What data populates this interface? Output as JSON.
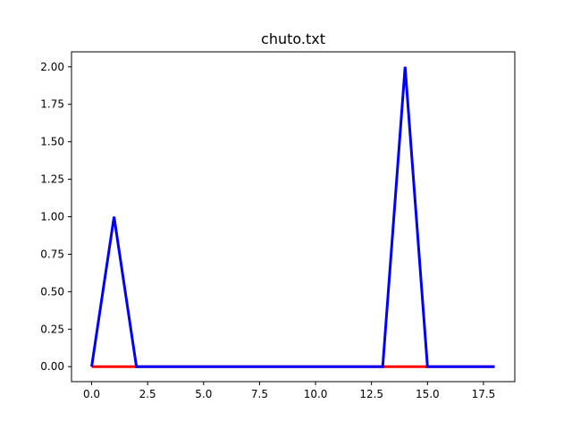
{
  "chart_data": {
    "type": "line",
    "title": "chuto.txt",
    "xlabel": "",
    "ylabel": "",
    "xlim": [
      -0.9,
      18.9
    ],
    "ylim": [
      -0.1,
      2.1
    ],
    "xticks": [
      0,
      2.5,
      5,
      7.5,
      10,
      12.5,
      15,
      17.5
    ],
    "xtick_labels": [
      "0.0",
      "2.5",
      "5.0",
      "7.5",
      "10.0",
      "12.5",
      "15.0",
      "17.5"
    ],
    "yticks": [
      0,
      0.25,
      0.5,
      0.75,
      1,
      1.25,
      1.5,
      1.75,
      2
    ],
    "ytick_labels": [
      "0.00",
      "0.25",
      "0.50",
      "0.75",
      "1.00",
      "1.25",
      "1.50",
      "1.75",
      "2.00"
    ],
    "grid": false,
    "x": [
      0,
      1,
      2,
      3,
      4,
      5,
      6,
      7,
      8,
      9,
      10,
      11,
      12,
      13,
      14,
      15,
      16,
      17,
      18
    ],
    "series": [
      {
        "color": "#ff0000",
        "values": [
          0,
          0,
          0,
          0,
          0,
          0,
          0,
          0,
          0,
          0,
          0,
          0,
          0,
          0,
          0,
          0,
          0,
          0,
          0
        ]
      },
      {
        "color": "#0000ff",
        "values": [
          0,
          1,
          0,
          0,
          0,
          0,
          0,
          0,
          0,
          0,
          0,
          0,
          0,
          0,
          2,
          0,
          0,
          0,
          0
        ]
      }
    ]
  }
}
